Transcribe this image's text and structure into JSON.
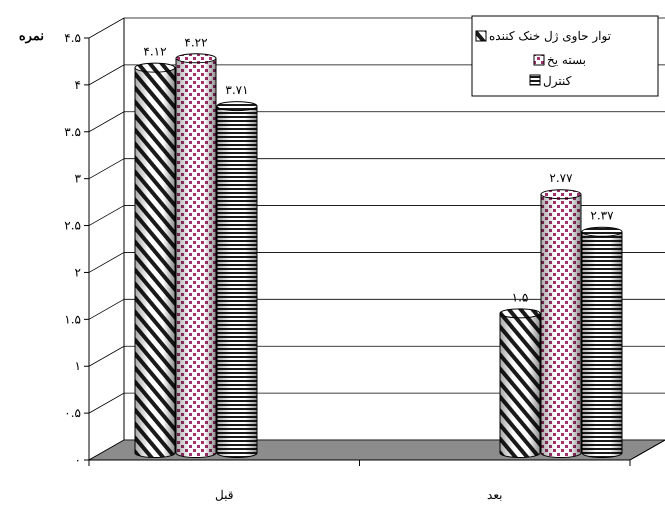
{
  "chart_data": {
    "type": "bar",
    "ylabel": "نمره",
    "categories": [
      "قبل",
      "بعد"
    ],
    "ylim": [
      0,
      4.5
    ],
    "yticks": [
      "۰",
      "۰.۵",
      "۱",
      "۱.۵",
      "۲",
      "۲.۵",
      "۳",
      "۳.۵",
      "۴",
      "۴.۵"
    ],
    "grid": true,
    "legend_position": "top-right",
    "series": [
      {
        "name": "توار حاوی ژل خنک کننده",
        "values": [
          4.12,
          1.5
        ],
        "value_labels": [
          "۴.۱۲",
          "۱.۵"
        ],
        "pattern": "diagonal-stripes"
      },
      {
        "name": "بسته یخ",
        "values": [
          4.22,
          2.77
        ],
        "value_labels": [
          "۴.۲۲",
          "۲.۷۷"
        ],
        "pattern": "pink-dots"
      },
      {
        "name": "کنترل",
        "values": [
          3.71,
          2.37
        ],
        "value_labels": [
          "۳.۷۱",
          "۲.۳۷"
        ],
        "pattern": "horizontal-stripes"
      }
    ],
    "colors": {
      "floor": "#8c8c8c",
      "dot": "#a0306e",
      "stripe": "#000000"
    }
  }
}
